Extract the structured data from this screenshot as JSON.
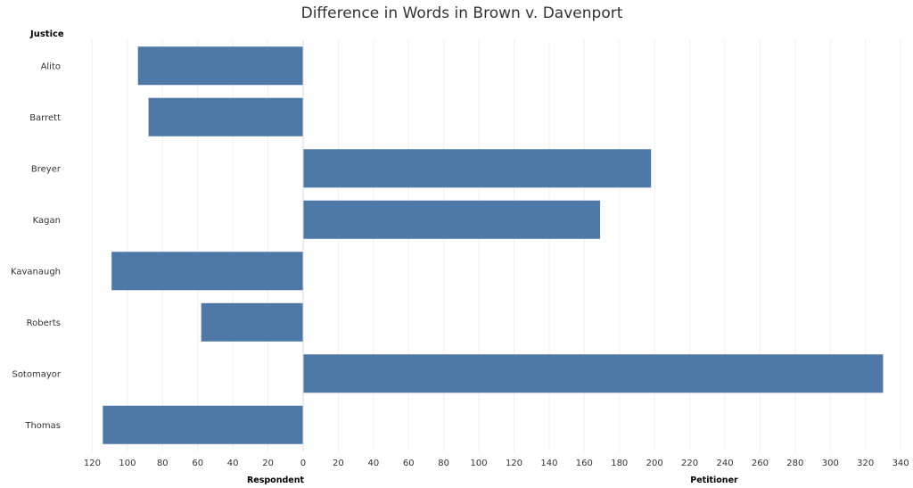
{
  "chart_data": {
    "type": "bar",
    "orientation": "horizontal",
    "title": "Difference in Words in Brown v. Davenport",
    "row_header": "Justice",
    "categories": [
      "Alito",
      "Barrett",
      "Breyer",
      "Kagan",
      "Kavanaugh",
      "Roberts",
      "Sotomayor",
      "Thomas"
    ],
    "values": [
      -94,
      -88,
      198,
      169,
      -109,
      -58,
      330,
      -114
    ],
    "xlim": [
      -138,
      344
    ],
    "ticks": [
      -120,
      -100,
      -80,
      -60,
      -40,
      -20,
      0,
      20,
      40,
      60,
      80,
      100,
      120,
      140,
      160,
      180,
      200,
      220,
      240,
      260,
      280,
      300,
      320,
      340
    ],
    "tick_labels": [
      "120",
      "100",
      "80",
      "60",
      "40",
      "20",
      "0",
      "20",
      "40",
      "60",
      "80",
      "100",
      "120",
      "140",
      "160",
      "180",
      "200",
      "220",
      "240",
      "260",
      "280",
      "300",
      "320",
      "340"
    ],
    "xlabel_left": "Respondent",
    "xlabel_right": "Petitioner",
    "bar_color": "#4e79a7",
    "grid": true
  }
}
